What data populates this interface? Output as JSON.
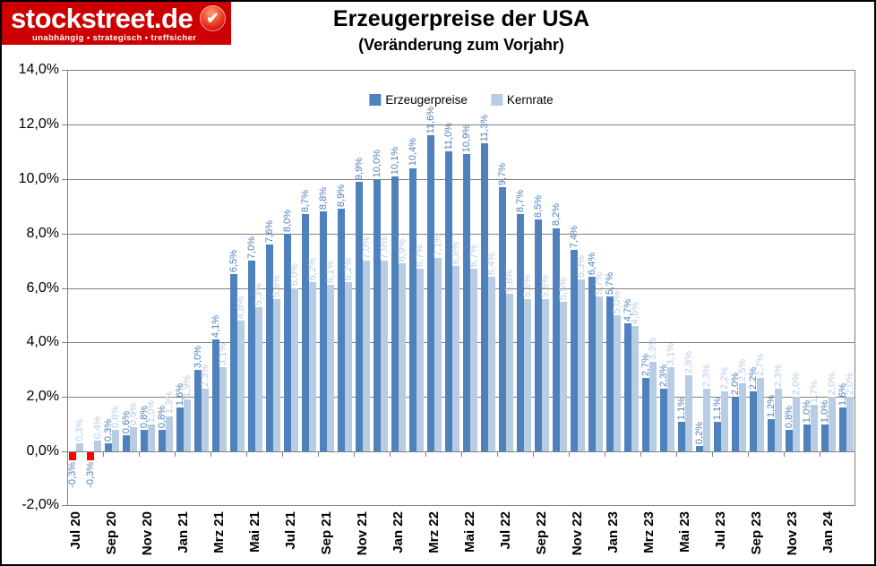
{
  "logo": {
    "brand": "stockstreet.de",
    "tagline": "unabhängig • strategisch • treffsicher",
    "badge_icon": "checkmark-icon",
    "bg_color": "#CC0000",
    "check_glyph": "✔"
  },
  "header": {
    "title": "Erzeugerpreise der USA",
    "subtitle": "(Veränderung zum Vorjahr)"
  },
  "chart_data": {
    "type": "bar",
    "title": "Erzeugerpreise der USA",
    "subtitle": "(Veränderung zum Vorjahr)",
    "categories": [
      "Jul 20",
      "Aug 20",
      "Sep 20",
      "Okt 20",
      "Nov 20",
      "Dez 20",
      "Jan 21",
      "Feb 21",
      "Mrz 21",
      "Apr 21",
      "Mai 21",
      "Jun 21",
      "Jul 21",
      "Aug 21",
      "Sep 21",
      "Okt 21",
      "Nov 21",
      "Dez 21",
      "Jan 22",
      "Feb 22",
      "Mrz 22",
      "Apr 22",
      "Mai 22",
      "Jun 22",
      "Jul 22",
      "Aug 22",
      "Sep 22",
      "Okt 22",
      "Nov 22",
      "Dez 22",
      "Jan 23",
      "Feb 23",
      "Mrz 23",
      "Apr 23",
      "Mai 23",
      "Jun 23",
      "Jul 23",
      "Aug 23",
      "Sep 23",
      "Okt 23",
      "Nov 23",
      "Dez 23",
      "Jan 24",
      "Feb 24"
    ],
    "series": [
      {
        "name": "Erzeugerpreise",
        "color": "#4F81BD",
        "negative_color": "#FF0000",
        "values": [
          -0.3,
          -0.3,
          0.3,
          0.6,
          0.8,
          0.8,
          1.6,
          3.0,
          4.1,
          6.5,
          7.0,
          7.6,
          8.0,
          8.7,
          8.8,
          8.9,
          9.9,
          10.0,
          10.1,
          10.4,
          11.6,
          11.0,
          10.9,
          11.3,
          9.7,
          8.7,
          8.5,
          8.2,
          7.4,
          6.4,
          5.7,
          4.7,
          2.7,
          2.3,
          1.1,
          0.2,
          1.1,
          2.0,
          2.2,
          1.2,
          0.8,
          1.0,
          1.0,
          1.6
        ]
      },
      {
        "name": "Kernrate",
        "color": "#B8CCE4",
        "values": [
          0.3,
          0.4,
          0.8,
          0.9,
          1.0,
          1.3,
          1.9,
          2.3,
          3.1,
          4.8,
          5.3,
          5.6,
          6.0,
          6.2,
          6.1,
          6.2,
          7.0,
          7.0,
          6.9,
          6.7,
          7.1,
          6.8,
          6.7,
          6.4,
          5.8,
          5.6,
          5.6,
          5.5,
          6.3,
          5.7,
          5.0,
          4.6,
          3.3,
          3.1,
          2.8,
          2.3,
          2.2,
          2.5,
          2.7,
          2.3,
          2.0,
          1.7,
          2.0,
          2.0
        ]
      }
    ],
    "ylim": [
      -2,
      14
    ],
    "y_tick_step": 2,
    "y_tick_labels_top_to_bottom": [
      "14,0%",
      "12,0%",
      "10,0%",
      "8,0%",
      "6,0%",
      "4,0%",
      "2,0%",
      "0,0%",
      "-2,0%"
    ],
    "x_tick_labels": [
      "Jul 20",
      "Sep 20",
      "Nov 20",
      "Jan 21",
      "Mrz 21",
      "Mai 21",
      "Jul 21",
      "Sep 21",
      "Nov 21",
      "Jan 22",
      "Mrz 22",
      "Mai 22",
      "Jul 22",
      "Sep 22",
      "Nov 22",
      "Jan 23",
      "Mrz 23",
      "Mai 23",
      "Jul 23",
      "Sep 23",
      "Nov 23",
      "Jan 24"
    ],
    "x_label_every": 2,
    "value_labels": true,
    "value_label_format": "german-percent-1dp",
    "grid": true,
    "gridline_color": "#808080",
    "legend_position": "top-center",
    "legend": [
      "Erzeugerpreise",
      "Kernrate"
    ]
  }
}
